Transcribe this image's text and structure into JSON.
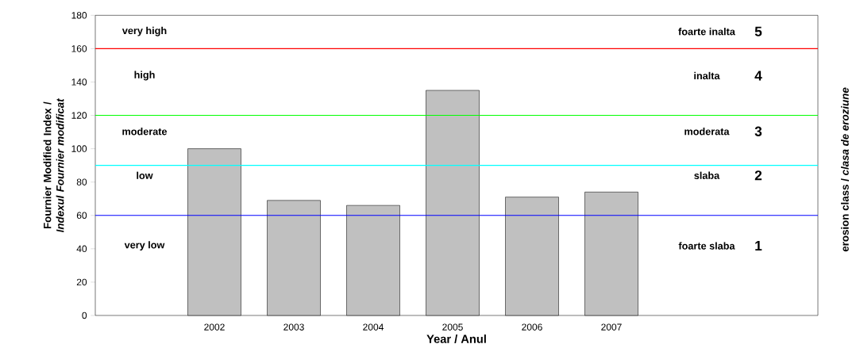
{
  "chart_data": {
    "type": "bar",
    "xlabel": "Year / Anul",
    "ylabel": "Fournier Modified Index / *Indexul Fournier modificat*",
    "y2label": "erosion class / *clasa de eroziune*",
    "categories": [
      null,
      "2002",
      "2003",
      "2004",
      "2005",
      "2006",
      "2007",
      null,
      null
    ],
    "values": [
      null,
      100,
      69,
      66,
      135,
      71,
      74,
      null,
      null
    ],
    "color": "#c0c0c0",
    "ylim": [
      0,
      180
    ],
    "yticks": [
      0,
      20,
      40,
      60,
      80,
      100,
      120,
      140,
      160,
      180
    ],
    "grid": false,
    "ref_lines": [
      {
        "axis": "y",
        "value": 60,
        "color": "#0000ff"
      },
      {
        "axis": "y",
        "value": 90,
        "color": "#00ffff"
      },
      {
        "axis": "y",
        "value": 120,
        "color": "#00ff00"
      },
      {
        "axis": "y",
        "value": 160,
        "color": "#ff0000"
      }
    ],
    "annotations": [
      "very high",
      "high",
      "moderate",
      "low",
      "very low",
      "foarte inalta",
      "inalta",
      "moderata",
      "slaba",
      "foarte slaba",
      "5",
      "4",
      "3",
      "2",
      "1"
    ]
  }
}
